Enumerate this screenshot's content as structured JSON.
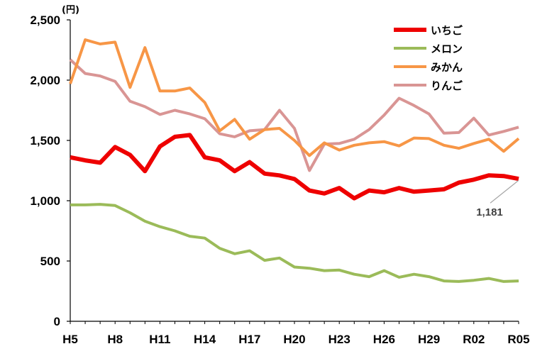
{
  "chart_data": {
    "type": "line",
    "unit_label": "(円)",
    "x": [
      "H5",
      "H6",
      "H7",
      "H8",
      "H9",
      "H10",
      "H11",
      "H12",
      "H13",
      "H14",
      "H15",
      "H16",
      "H17",
      "H18",
      "H19",
      "H20",
      "H21",
      "H22",
      "H23",
      "H24",
      "H25",
      "H26",
      "H27",
      "H28",
      "H29",
      "H30",
      "R01",
      "R02",
      "R03",
      "R04",
      "R05"
    ],
    "x_tick_labels": [
      "H5",
      "H8",
      "H11",
      "H14",
      "H17",
      "H20",
      "H23",
      "H26",
      "H29",
      "R02",
      "R05"
    ],
    "ylim": [
      0,
      2500
    ],
    "y_ticks": [
      0,
      500,
      1000,
      1500,
      2000,
      2500
    ],
    "y_tick_labels": [
      "0",
      "500",
      "1,000",
      "1,500",
      "2,000",
      "2,500"
    ],
    "legend_position": "top-right",
    "grid": false,
    "series": [
      {
        "name": "いちご",
        "color": "#ee0000",
        "width": 6,
        "values": [
          1360,
          1335,
          1315,
          1445,
          1380,
          1245,
          1450,
          1530,
          1545,
          1360,
          1335,
          1245,
          1320,
          1225,
          1210,
          1180,
          1085,
          1060,
          1105,
          1020,
          1085,
          1070,
          1105,
          1075,
          1085,
          1095,
          1150,
          1175,
          1210,
          1205,
          1181
        ]
      },
      {
        "name": "メロン",
        "color": "#9bbb59",
        "width": 4,
        "values": [
          965,
          965,
          970,
          960,
          900,
          830,
          785,
          750,
          705,
          690,
          605,
          560,
          585,
          505,
          525,
          450,
          440,
          420,
          425,
          390,
          370,
          420,
          365,
          390,
          370,
          335,
          330,
          340,
          355,
          330,
          335
        ]
      },
      {
        "name": "みかん",
        "color": "#f79646",
        "width": 4,
        "values": [
          1970,
          2335,
          2300,
          2315,
          1940,
          2270,
          1910,
          1910,
          1935,
          1815,
          1580,
          1675,
          1510,
          1590,
          1600,
          1500,
          1375,
          1480,
          1420,
          1460,
          1480,
          1490,
          1455,
          1520,
          1515,
          1460,
          1435,
          1475,
          1510,
          1410,
          1515
        ]
      },
      {
        "name": "りんご",
        "color": "#d99594",
        "width": 4,
        "values": [
          2170,
          2055,
          2035,
          1990,
          1825,
          1780,
          1715,
          1750,
          1720,
          1680,
          1555,
          1530,
          1580,
          1590,
          1750,
          1600,
          1250,
          1470,
          1475,
          1510,
          1590,
          1710,
          1850,
          1790,
          1720,
          1560,
          1565,
          1685,
          1545,
          1575,
          1610
        ]
      }
    ],
    "annotations": [
      {
        "text": "1,181",
        "series": "いちご",
        "index": 30
      }
    ]
  }
}
